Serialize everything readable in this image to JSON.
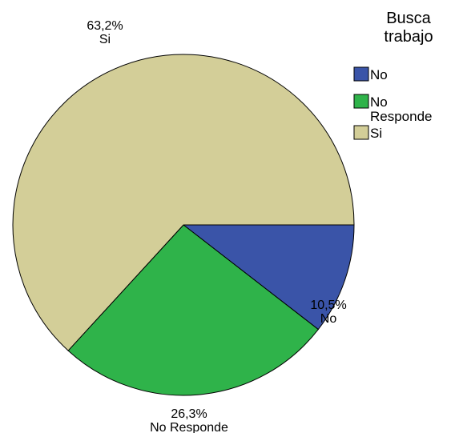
{
  "chart_data": {
    "type": "pie",
    "legend": {
      "title_lines": [
        "Busca",
        "trabajo"
      ],
      "placement": "top-right",
      "entries": [
        {
          "label_lines": [
            "No"
          ],
          "color": "#3a54a8"
        },
        {
          "label_lines": [
            "No",
            "Responde"
          ],
          "color": "#2fb34a"
        },
        {
          "label_lines": [
            "Si"
          ],
          "color": "#d3ce98"
        }
      ]
    },
    "slices": [
      {
        "name": "No",
        "value": 10.5,
        "percent_label": "10,5%",
        "name_label": "No",
        "color": "#3a54a8"
      },
      {
        "name": "No Responde",
        "value": 26.3,
        "percent_label": "26,3%",
        "name_label": "No Responde",
        "color": "#2fb34a"
      },
      {
        "name": "Si",
        "value": 63.2,
        "percent_label": "63,2%",
        "name_label": "Si",
        "color": "#d3ce98"
      }
    ]
  }
}
